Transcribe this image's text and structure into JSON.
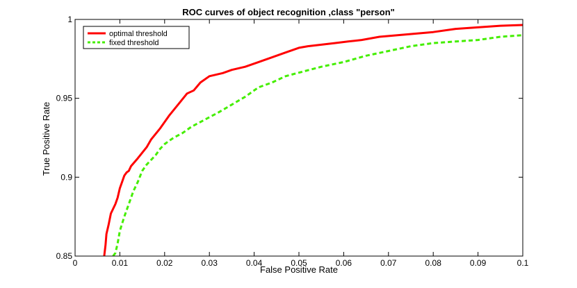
{
  "chart_data": {
    "type": "line",
    "title": "ROC curves of object recognition ,class \"person\"",
    "xlabel": "False Positive Rate",
    "ylabel": "True Positive Rate",
    "xlim": [
      0,
      0.1
    ],
    "ylim": [
      0.85,
      1
    ],
    "xticks": [
      0,
      0.01,
      0.02,
      0.03,
      0.04,
      0.05,
      0.06,
      0.07,
      0.08,
      0.09,
      0.1
    ],
    "xtick_labels": [
      "0",
      "0.01",
      "0.02",
      "0.03",
      "0.04",
      "0.05",
      "0.06",
      "0.07",
      "0.08",
      "0.09",
      "0.1"
    ],
    "yticks": [
      0.85,
      0.9,
      0.95,
      1
    ],
    "ytick_labels": [
      "0.85",
      "0.9",
      "0.95",
      "1"
    ],
    "grid": false,
    "legend_position": "top-left",
    "series": [
      {
        "name": "optimal threshold",
        "color": "#ff0000",
        "style": "solid",
        "x": [
          0.0065,
          0.0068,
          0.007,
          0.0075,
          0.008,
          0.009,
          0.0095,
          0.01,
          0.0105,
          0.011,
          0.0115,
          0.012,
          0.0125,
          0.014,
          0.016,
          0.017,
          0.019,
          0.021,
          0.023,
          0.025,
          0.0265,
          0.028,
          0.03,
          0.033,
          0.035,
          0.038,
          0.041,
          0.044,
          0.047,
          0.05,
          0.052,
          0.055,
          0.058,
          0.061,
          0.064,
          0.068,
          0.072,
          0.076,
          0.08,
          0.085,
          0.09,
          0.095,
          0.1
        ],
        "y": [
          0.85,
          0.857,
          0.864,
          0.87,
          0.877,
          0.883,
          0.887,
          0.893,
          0.897,
          0.901,
          0.903,
          0.904,
          0.907,
          0.912,
          0.919,
          0.924,
          0.931,
          0.939,
          0.946,
          0.953,
          0.955,
          0.96,
          0.964,
          0.966,
          0.968,
          0.97,
          0.973,
          0.976,
          0.979,
          0.982,
          0.983,
          0.984,
          0.985,
          0.986,
          0.987,
          0.989,
          0.99,
          0.991,
          0.992,
          0.994,
          0.995,
          0.996,
          0.9965
        ]
      },
      {
        "name": "fixed threshold",
        "color": "#44ee00",
        "style": "dashed",
        "x": [
          0.0085,
          0.009,
          0.0095,
          0.01,
          0.011,
          0.012,
          0.013,
          0.014,
          0.015,
          0.016,
          0.017,
          0.018,
          0.019,
          0.02,
          0.021,
          0.022,
          0.024,
          0.026,
          0.028,
          0.03,
          0.032,
          0.035,
          0.038,
          0.041,
          0.044,
          0.047,
          0.051,
          0.055,
          0.06,
          0.065,
          0.07,
          0.075,
          0.08,
          0.085,
          0.09,
          0.095,
          0.1
        ],
        "y": [
          0.85,
          0.852,
          0.858,
          0.866,
          0.875,
          0.883,
          0.891,
          0.897,
          0.904,
          0.908,
          0.911,
          0.914,
          0.918,
          0.921,
          0.923,
          0.925,
          0.928,
          0.932,
          0.935,
          0.938,
          0.941,
          0.946,
          0.951,
          0.957,
          0.96,
          0.964,
          0.967,
          0.97,
          0.973,
          0.977,
          0.98,
          0.983,
          0.985,
          0.986,
          0.987,
          0.989,
          0.99
        ]
      }
    ]
  }
}
